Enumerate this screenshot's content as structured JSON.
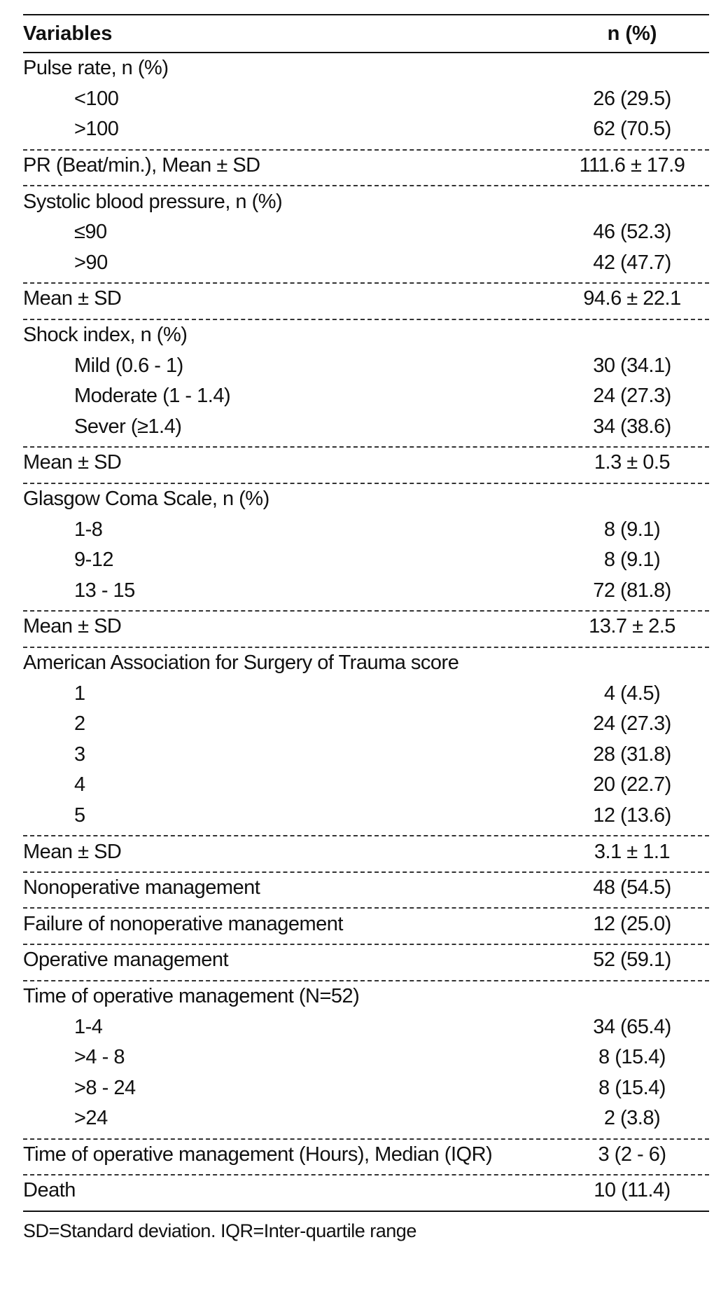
{
  "header": {
    "variables": "Variables",
    "n_percent": "n (%)"
  },
  "groups": [
    {
      "rows": [
        {
          "label": "Pulse rate, n (%)",
          "value": "",
          "indent": false
        },
        {
          "label": "<100",
          "value": "26 (29.5)",
          "indent": true
        },
        {
          "label": ">100",
          "value": "62 (70.5)",
          "indent": true
        }
      ]
    },
    {
      "rows": [
        {
          "label": "PR (Beat/min.), Mean ± SD",
          "value": "111.6 ± 17.9",
          "indent": false
        }
      ]
    },
    {
      "rows": [
        {
          "label": "Systolic blood pressure, n (%)",
          "value": "",
          "indent": false
        },
        {
          "label": "≤90",
          "value": "46 (52.3)",
          "indent": true
        },
        {
          "label": ">90",
          "value": "42 (47.7)",
          "indent": true
        }
      ]
    },
    {
      "rows": [
        {
          "label": "Mean ± SD",
          "value": "94.6 ± 22.1",
          "indent": false
        }
      ]
    },
    {
      "rows": [
        {
          "label": "Shock index, n (%)",
          "value": "",
          "indent": false
        },
        {
          "label": "Mild (0.6 - 1)",
          "value": "30 (34.1)",
          "indent": true
        },
        {
          "label": "Moderate (1 - 1.4)",
          "value": "24 (27.3)",
          "indent": true
        },
        {
          "label": "Sever (≥1.4)",
          "value": "34 (38.6)",
          "indent": true
        }
      ]
    },
    {
      "rows": [
        {
          "label": "Mean ± SD",
          "value": "1.3 ± 0.5",
          "indent": false
        }
      ]
    },
    {
      "rows": [
        {
          "label": "Glasgow Coma Scale, n (%)",
          "value": "",
          "indent": false
        },
        {
          "label": "1-8",
          "value": "8 (9.1)",
          "indent": true
        },
        {
          "label": "9-12",
          "value": "8 (9.1)",
          "indent": true
        },
        {
          "label": "13 - 15",
          "value": "72 (81.8)",
          "indent": true
        }
      ]
    },
    {
      "rows": [
        {
          "label": "Mean ± SD",
          "value": "13.7 ± 2.5",
          "indent": false
        }
      ]
    },
    {
      "rows": [
        {
          "label": "American Association for Surgery of Trauma score",
          "value": "",
          "indent": false
        },
        {
          "label": "1",
          "value": "4 (4.5)",
          "indent": true
        },
        {
          "label": "2",
          "value": "24 (27.3)",
          "indent": true
        },
        {
          "label": "3",
          "value": "28 (31.8)",
          "indent": true
        },
        {
          "label": "4",
          "value": "20 (22.7)",
          "indent": true
        },
        {
          "label": "5",
          "value": "12 (13.6)",
          "indent": true
        }
      ]
    },
    {
      "rows": [
        {
          "label": "Mean ± SD",
          "value": "3.1 ± 1.1",
          "indent": false
        }
      ]
    },
    {
      "rows": [
        {
          "label": "Nonoperative management",
          "value": "48 (54.5)",
          "indent": false
        }
      ]
    },
    {
      "rows": [
        {
          "label": "Failure of nonoperative management",
          "value": "12 (25.0)",
          "indent": false
        }
      ]
    },
    {
      "rows": [
        {
          "label": "Operative management",
          "value": "52 (59.1)",
          "indent": false
        }
      ]
    },
    {
      "rows": [
        {
          "label": "Time of operative management (N=52)",
          "value": "",
          "indent": false
        },
        {
          "label": "1-4",
          "value": "34 (65.4)",
          "indent": true
        },
        {
          "label": ">4 - 8",
          "value": "8 (15.4)",
          "indent": true
        },
        {
          "label": ">8 - 24",
          "value": "8 (15.4)",
          "indent": true
        },
        {
          "label": ">24",
          "value": "2 (3.8)",
          "indent": true
        }
      ]
    },
    {
      "rows": [
        {
          "label": "Time of operative management (Hours), Median (IQR)",
          "value": "3 (2 - 6)",
          "indent": false
        }
      ]
    },
    {
      "rows": [
        {
          "label": "Death",
          "value": "10 (11.4)",
          "indent": false
        }
      ]
    }
  ],
  "footnote": "SD=Standard deviation. IQR=Inter-quartile range"
}
